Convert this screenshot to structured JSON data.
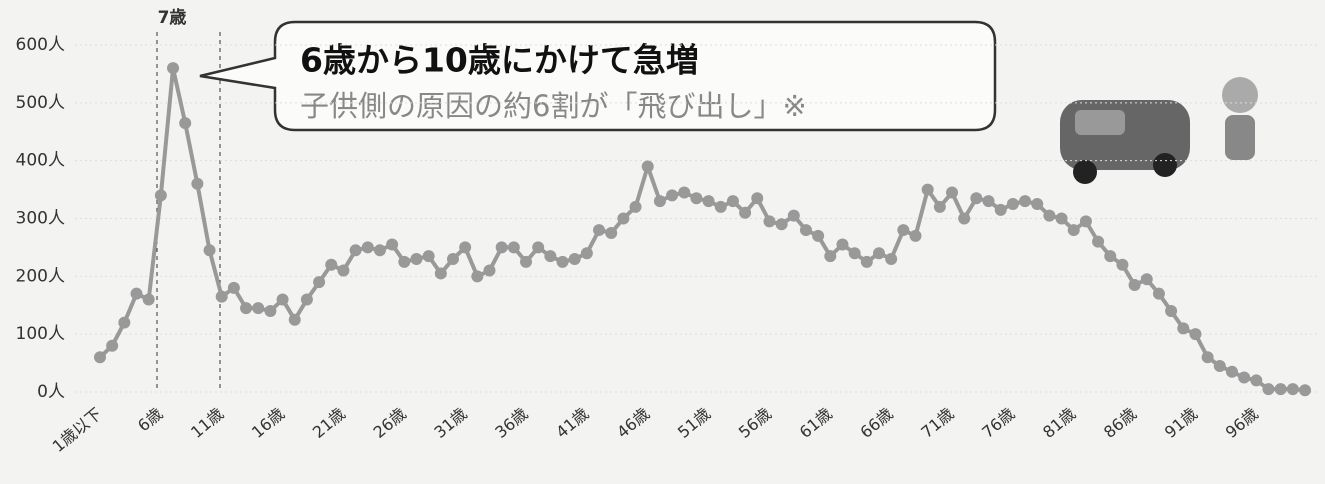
{
  "chart_data": {
    "type": "line",
    "annotations": [
      "7歳",
      "6歳から10歳にかけて急増",
      "子供側の原因の約6割が「飛び出し」※"
    ],
    "categories": [
      "1歳以下",
      null,
      null,
      null,
      null,
      "6歳",
      null,
      null,
      null,
      null,
      "11歳",
      null,
      null,
      null,
      null,
      "16歳",
      null,
      null,
      null,
      null,
      "21歳",
      null,
      null,
      null,
      null,
      "26歳",
      null,
      null,
      null,
      null,
      "31歳",
      null,
      null,
      null,
      null,
      "36歳",
      null,
      null,
      null,
      null,
      "41歳",
      null,
      null,
      null,
      null,
      "46歳",
      null,
      null,
      null,
      null,
      "51歳",
      null,
      null,
      null,
      null,
      "56歳",
      null,
      null,
      null,
      null,
      "61歳",
      null,
      null,
      null,
      null,
      "66歳",
      null,
      null,
      null,
      null,
      "71歳",
      null,
      null,
      null,
      null,
      "76歳",
      null,
      null,
      null,
      null,
      "81歳",
      null,
      null,
      null,
      null,
      "86歳",
      null,
      null,
      null,
      null,
      "91歳",
      null,
      null,
      null,
      null,
      "96歳",
      null,
      null,
      null,
      null
    ],
    "series": [
      {
        "color": "#999999",
        "values": [
          60,
          80,
          120,
          170,
          160,
          340,
          560,
          465,
          360,
          245,
          165,
          180,
          145,
          145,
          140,
          160,
          125,
          160,
          190,
          220,
          210,
          245,
          250,
          245,
          255,
          225,
          230,
          235,
          205,
          230,
          250,
          200,
          210,
          250,
          250,
          225,
          250,
          235,
          225,
          230,
          240,
          280,
          275,
          300,
          320,
          390,
          330,
          340,
          345,
          335,
          330,
          320,
          330,
          310,
          335,
          295,
          290,
          305,
          280,
          270,
          235,
          255,
          240,
          225,
          240,
          230,
          280,
          270,
          350,
          320,
          345,
          300,
          335,
          330,
          315,
          325,
          330,
          325,
          305,
          300,
          280,
          295,
          260,
          235,
          220,
          185,
          195,
          170,
          140,
          110,
          100,
          60,
          45,
          35,
          25,
          20,
          5,
          5,
          5,
          3
        ]
      }
    ],
    "ylim": [
      0,
      600
    ],
    "yticks": [
      {
        "value": 0,
        "label": "0人"
      },
      {
        "value": 100,
        "label": "100人"
      },
      {
        "value": 200,
        "label": "200人"
      },
      {
        "value": 300,
        "label": "300人"
      },
      {
        "value": 400,
        "label": "400人"
      },
      {
        "value": 500,
        "label": "500人"
      },
      {
        "value": 600,
        "label": "600人"
      }
    ],
    "grid": true
  }
}
